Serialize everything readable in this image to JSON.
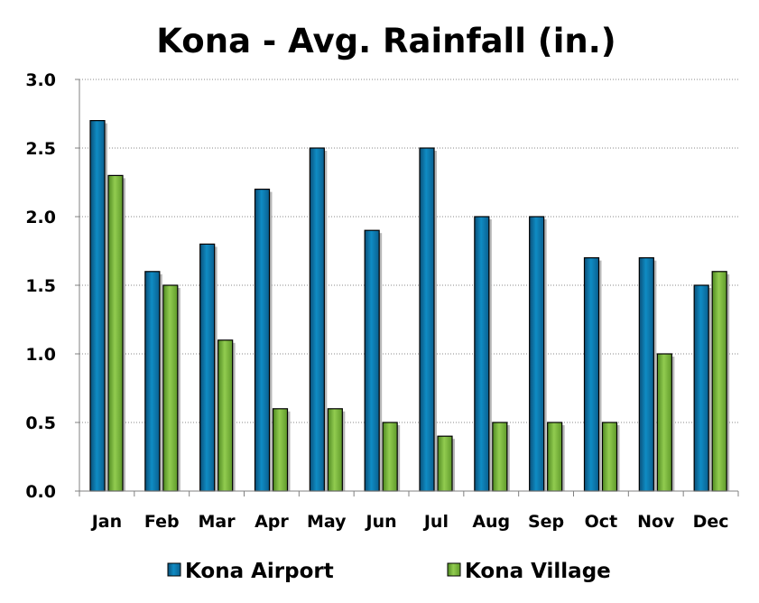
{
  "chart_data": {
    "type": "bar",
    "title": "Kona - Avg. Rainfall (in.)",
    "xlabel": "",
    "ylabel": "",
    "ylim": [
      0,
      3.0
    ],
    "yticks": [
      "0.0",
      "0.5",
      "1.0",
      "1.5",
      "2.0",
      "2.5",
      "3.0"
    ],
    "categories": [
      "Jan",
      "Feb",
      "Mar",
      "Apr",
      "May",
      "Jun",
      "Jul",
      "Aug",
      "Sep",
      "Oct",
      "Nov",
      "Dec"
    ],
    "series": [
      {
        "name": "Kona Airport",
        "color": "#0a7ab0",
        "values": [
          2.7,
          1.6,
          1.8,
          2.2,
          2.5,
          1.9,
          2.5,
          2.0,
          2.0,
          1.7,
          1.7,
          1.5
        ]
      },
      {
        "name": "Kona Village",
        "color": "#7ab83a",
        "values": [
          2.3,
          1.5,
          1.1,
          0.6,
          0.6,
          0.5,
          0.4,
          0.5,
          0.5,
          0.5,
          1.0,
          1.6
        ]
      }
    ],
    "grid": "horizontal-dotted",
    "legend": "bottom"
  }
}
